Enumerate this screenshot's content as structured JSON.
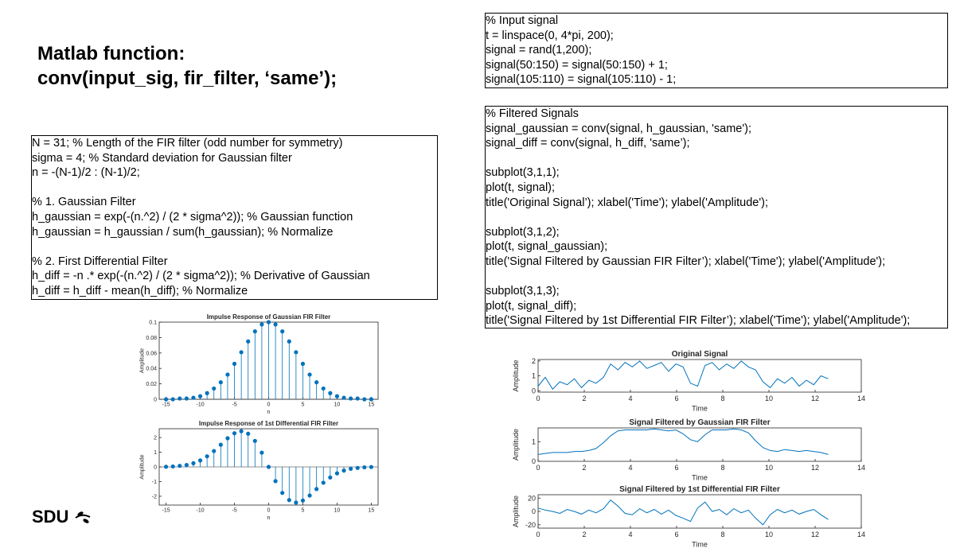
{
  "slide": {
    "title_lines": [
      "Matlab function:",
      "conv(input_sig, fir_filter, ‘same’);"
    ],
    "logo": "SDU"
  },
  "code_left": {
    "blocks": [
      [
        "N = 31; % Length of the FIR filter (odd number for symmetry)",
        "sigma = 4; % Standard deviation for Gaussian filter",
        "n = -(N-1)/2 : (N-1)/2;"
      ],
      [
        "% 1. Gaussian Filter",
        "h_gaussian = exp(-(n.^2) / (2 * sigma^2)); % Gaussian function",
        "h_gaussian = h_gaussian / sum(h_gaussian); % Normalize"
      ],
      [
        "% 2. First Differential Filter",
        "h_diff = -n .* exp(-(n.^2) / (2 * sigma^2)); % Derivative of Gaussian",
        "h_diff = h_diff - mean(h_diff); % Normalize"
      ]
    ]
  },
  "code_right_top": {
    "blocks": [
      [
        "% Input signal",
        "t = linspace(0, 4*pi, 200);",
        "signal = rand(1,200);",
        "signal(50:150) = signal(50:150) + 1;",
        "signal(105:110) = signal(105:110) - 1;"
      ]
    ]
  },
  "code_right_bottom": {
    "blocks": [
      [
        "% Filtered Signals",
        "signal_gaussian = conv(signal, h_gaussian, 'same');",
        "signal_diff = conv(signal, h_diff, 'same’);"
      ],
      [
        "subplot(3,1,1);",
        "plot(t, signal);",
        "title('Original Signal’); xlabel('Time'); ylabel('Amplitude');"
      ],
      [
        "subplot(3,1,2);",
        "plot(t, signal_gaussian);",
        "title('Signal Filtered by Gaussian FIR Filter’); xlabel('Time'); ylabel('Amplitude');"
      ],
      [
        "subplot(3,1,3);",
        "plot(t, signal_diff);",
        "title('Signal Filtered by 1st Differential FIR Filter’); xlabel('Time'); ylabel('Amplitude');"
      ]
    ]
  },
  "chart_data": [
    {
      "type": "stem",
      "title": "Impulse Response of Gaussian FIR Filter",
      "xlabel": "n",
      "ylabel": "Amplitude",
      "color": "#0072bd",
      "x": [
        -15,
        -14,
        -13,
        -12,
        -11,
        -10,
        -9,
        -8,
        -7,
        -6,
        -5,
        -4,
        -3,
        -2,
        -1,
        0,
        1,
        2,
        3,
        4,
        5,
        6,
        7,
        8,
        9,
        10,
        11,
        12,
        13,
        14,
        15
      ],
      "values": [
        0,
        0,
        0.001,
        0.001,
        0.002,
        0.004,
        0.008,
        0.014,
        0.022,
        0.032,
        0.046,
        0.061,
        0.075,
        0.088,
        0.097,
        0.1,
        0.097,
        0.088,
        0.075,
        0.061,
        0.046,
        0.032,
        0.022,
        0.014,
        0.008,
        0.004,
        0.002,
        0.001,
        0.001,
        0,
        0
      ],
      "xlim": [
        -16,
        16
      ],
      "xticks": [
        -15,
        -10,
        -5,
        0,
        5,
        10,
        15
      ],
      "ylim": [
        0,
        0.1
      ],
      "yticks": [
        0,
        0.02,
        0.04,
        0.06,
        0.08,
        0.1
      ]
    },
    {
      "type": "stem",
      "title": "Impulse Response of 1st Differential FIR Filter",
      "xlabel": "n",
      "ylabel": "Amplitude",
      "color": "#0072bd",
      "x": [
        -15,
        -14,
        -13,
        -12,
        -11,
        -10,
        -9,
        -8,
        -7,
        -6,
        -5,
        -4,
        -3,
        -2,
        -1,
        0,
        1,
        2,
        3,
        4,
        5,
        6,
        7,
        8,
        9,
        10,
        11,
        12,
        13,
        14,
        15
      ],
      "values": [
        0.01,
        0.03,
        0.07,
        0.13,
        0.25,
        0.44,
        0.72,
        1.08,
        1.51,
        1.95,
        2.29,
        2.43,
        2.26,
        1.77,
        0.97,
        0,
        -0.97,
        -1.77,
        -2.26,
        -2.43,
        -2.29,
        -1.95,
        -1.51,
        -1.08,
        -0.72,
        -0.44,
        -0.25,
        -0.13,
        -0.07,
        -0.03,
        -0.01
      ],
      "xlim": [
        -16,
        16
      ],
      "xticks": [
        -15,
        -10,
        -5,
        0,
        5,
        10,
        15
      ],
      "ylim": [
        -2.6,
        2.6
      ],
      "yticks": [
        -2,
        -1,
        0,
        1,
        2
      ]
    },
    {
      "type": "line",
      "title": "Original Signal",
      "xlabel": "Time",
      "ylabel": "Amplitude",
      "color": "#0072bd",
      "x": [
        0,
        0.31,
        0.63,
        0.94,
        1.26,
        1.57,
        1.88,
        2.2,
        2.51,
        2.83,
        3.14,
        3.46,
        3.77,
        4.08,
        4.4,
        4.71,
        5.03,
        5.34,
        5.65,
        5.97,
        6.28,
        6.6,
        6.91,
        7.23,
        7.54,
        7.85,
        8.17,
        8.48,
        8.8,
        9.11,
        9.42,
        9.74,
        10.05,
        10.37,
        10.68,
        11,
        11.31,
        11.62,
        11.94,
        12.25,
        12.57
      ],
      "values": [
        0.3,
        0.9,
        0.1,
        0.6,
        0.4,
        0.8,
        0.2,
        0.7,
        0.5,
        0.9,
        1.8,
        1.4,
        1.9,
        1.6,
        2.0,
        1.5,
        1.7,
        1.9,
        1.3,
        1.8,
        1.6,
        0.5,
        0.3,
        1.7,
        1.9,
        1.4,
        1.8,
        1.5,
        2.0,
        1.6,
        1.4,
        0.6,
        0.2,
        0.8,
        0.5,
        0.9,
        0.3,
        0.7,
        0.4,
        1.0,
        0.8
      ],
      "xlim": [
        0,
        14
      ],
      "xticks": [
        0,
        2,
        4,
        6,
        8,
        10,
        12,
        14
      ],
      "ylim": [
        -0.1,
        2.1
      ],
      "yticks": [
        0,
        1,
        2
      ]
    },
    {
      "type": "line",
      "title": "Signal Filtered by Gaussian FIR Filter",
      "xlabel": "Time",
      "ylabel": "Amplitude",
      "color": "#0072bd",
      "x": [
        0,
        0.31,
        0.63,
        0.94,
        1.26,
        1.57,
        1.88,
        2.2,
        2.51,
        2.83,
        3.14,
        3.46,
        3.77,
        4.08,
        4.4,
        4.71,
        5.03,
        5.34,
        5.65,
        5.97,
        6.28,
        6.6,
        6.91,
        7.23,
        7.54,
        7.85,
        8.17,
        8.48,
        8.8,
        9.11,
        9.42,
        9.74,
        10.05,
        10.37,
        10.68,
        11,
        11.31,
        11.62,
        11.94,
        12.25,
        12.57
      ],
      "values": [
        0.35,
        0.4,
        0.45,
        0.45,
        0.45,
        0.5,
        0.5,
        0.55,
        0.65,
        0.95,
        1.3,
        1.55,
        1.6,
        1.6,
        1.6,
        1.6,
        1.65,
        1.6,
        1.55,
        1.6,
        1.4,
        1.1,
        1.0,
        1.35,
        1.6,
        1.6,
        1.6,
        1.65,
        1.6,
        1.45,
        1.05,
        0.7,
        0.55,
        0.5,
        0.6,
        0.55,
        0.5,
        0.55,
        0.5,
        0.45,
        0.35
      ],
      "xlim": [
        0,
        14
      ],
      "xticks": [
        0,
        2,
        4,
        6,
        8,
        10,
        12,
        14
      ],
      "ylim": [
        0,
        1.7
      ],
      "yticks": [
        0,
        1
      ]
    },
    {
      "type": "line",
      "title": "Signal Filtered by 1st Differential FIR Filter",
      "xlabel": "Time",
      "ylabel": "Amplitude",
      "color": "#0072bd",
      "x": [
        0,
        0.31,
        0.63,
        0.94,
        1.26,
        1.57,
        1.88,
        2.2,
        2.51,
        2.83,
        3.14,
        3.46,
        3.77,
        4.08,
        4.4,
        4.71,
        5.03,
        5.34,
        5.65,
        5.97,
        6.28,
        6.6,
        6.91,
        7.23,
        7.54,
        7.85,
        8.17,
        8.48,
        8.8,
        9.11,
        9.42,
        9.74,
        10.05,
        10.37,
        10.68,
        11,
        11.31,
        11.62,
        11.94,
        12.25,
        12.57
      ],
      "values": [
        5,
        2,
        0,
        -3,
        3,
        0,
        -4,
        2,
        -2,
        4,
        17,
        8,
        -3,
        -5,
        4,
        -2,
        3,
        -4,
        2,
        -6,
        -10,
        -15,
        5,
        14,
        0,
        3,
        -5,
        4,
        -2,
        2,
        -10,
        -20,
        -5,
        3,
        -2,
        2,
        -4,
        0,
        3,
        -5,
        -12
      ],
      "xlim": [
        0,
        14
      ],
      "xticks": [
        0,
        2,
        4,
        6,
        8,
        10,
        12,
        14
      ],
      "ylim": [
        -25,
        25
      ],
      "yticks": [
        -20,
        0,
        20
      ]
    }
  ]
}
